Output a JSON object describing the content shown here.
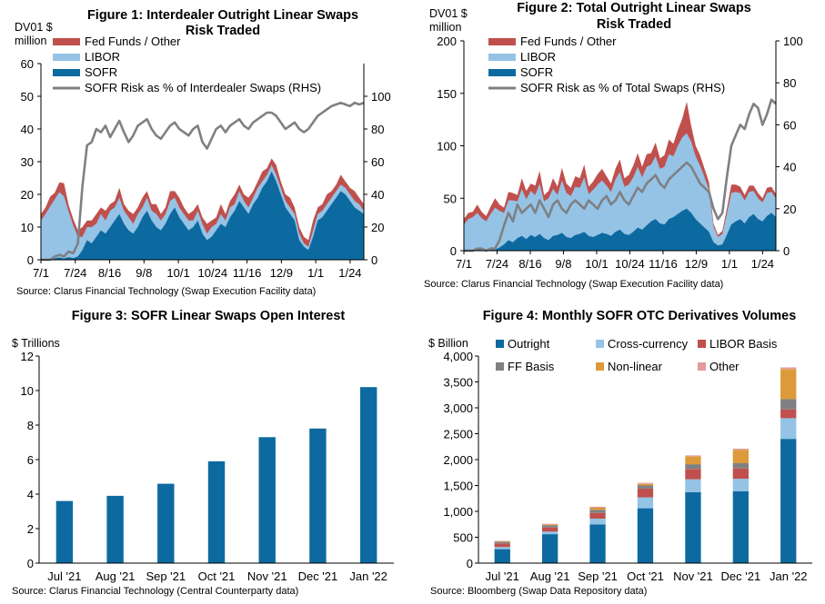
{
  "colors": {
    "sofr": "#0d6aa0",
    "libor": "#94c3e6",
    "fed": "#c0504d",
    "rhs": "#7f8083",
    "outright": "#0d6aa0",
    "crossccy": "#94c3e6",
    "liborbasis": "#c0504d",
    "ffbasis": "#7f8083",
    "nonlinear": "#dc9a3b",
    "other": "#e39a9a"
  },
  "chart_data": [
    {
      "type": "area",
      "title_line1": "Figure 1: Interdealer Outright Linear Swaps",
      "title_line2": "Risk Traded",
      "ylabel_line1": "DV01 $",
      "ylabel_line2": "million",
      "ylim": [
        0,
        60
      ],
      "yticks": [
        "0",
        "10",
        "20",
        "30",
        "40",
        "50",
        "60"
      ],
      "y2lim": [
        0,
        120
      ],
      "y2ticks": [
        "0",
        "20",
        "40",
        "60",
        "80",
        "100"
      ],
      "xticks": [
        "7/1",
        "7/24",
        "8/16",
        "9/8",
        "10/1",
        "10/24",
        "11/16",
        "12/9",
        "1/1",
        "1/24"
      ],
      "legend": [
        "Fed Funds / Other",
        "LIBOR",
        "SOFR",
        "SOFR Risk as % of Interdealer Swaps (RHS)"
      ],
      "source": "Source: Clarus Financial Technology  (Swap Execution Facility data)",
      "series": [
        {
          "name": "SOFR",
          "values": [
            0,
            0,
            0.3,
            0.5,
            0.7,
            0.4,
            0.8,
            0.5,
            1,
            3,
            6,
            5,
            7,
            9,
            8,
            10,
            12,
            14,
            11,
            9,
            8,
            10,
            13,
            15,
            12,
            10,
            9,
            11,
            14,
            16,
            13,
            11,
            9,
            10,
            12,
            8,
            6,
            7,
            9,
            11,
            10,
            13,
            15,
            18,
            16,
            14,
            17,
            19,
            22,
            24,
            27,
            24,
            20,
            16,
            14,
            12,
            6,
            4,
            3,
            7,
            12,
            13,
            15,
            17,
            19,
            21,
            20,
            18,
            16,
            15,
            14
          ]
        },
        {
          "name": "LIBOR",
          "values": [
            12,
            14,
            16,
            18,
            20,
            19,
            14,
            10,
            6,
            4,
            4,
            5,
            4,
            5,
            4,
            5,
            4,
            5,
            4,
            4,
            3,
            4,
            3,
            4,
            3,
            4,
            3,
            3,
            4,
            3,
            3,
            3,
            3,
            2,
            3,
            3,
            2,
            3,
            2,
            3,
            2,
            3,
            2,
            3,
            2,
            2,
            2,
            3,
            2,
            2,
            2,
            2,
            2,
            2,
            2,
            2,
            2,
            1,
            1,
            2,
            2,
            2,
            2,
            2,
            2,
            2,
            2,
            2,
            2,
            2,
            1
          ]
        },
        {
          "name": "Fed Funds / Other",
          "values": [
            2,
            2,
            3,
            2,
            3,
            4,
            2,
            2,
            2,
            3,
            2,
            2,
            3,
            2,
            3,
            2,
            2,
            3,
            2,
            2,
            3,
            2,
            3,
            2,
            2,
            3,
            2,
            2,
            3,
            2,
            3,
            2,
            2,
            3,
            2,
            2,
            3,
            2,
            2,
            3,
            2,
            2,
            3,
            2,
            2,
            3,
            2,
            2,
            3,
            2,
            2,
            3,
            2,
            2,
            3,
            2,
            2,
            2,
            2,
            3,
            2,
            2,
            3,
            2,
            2,
            3,
            2,
            2,
            3,
            2,
            2
          ]
        },
        {
          "name": "SOFR Risk as % of Interdealer Swaps (RHS)",
          "axis": "right",
          "values": [
            0,
            0,
            0,
            2,
            3,
            2,
            5,
            4,
            10,
            45,
            70,
            72,
            80,
            78,
            82,
            75,
            80,
            85,
            78,
            72,
            76,
            82,
            84,
            86,
            80,
            76,
            74,
            78,
            82,
            84,
            80,
            78,
            76,
            80,
            82,
            72,
            68,
            74,
            80,
            82,
            78,
            82,
            84,
            86,
            82,
            80,
            84,
            86,
            88,
            90,
            90,
            88,
            84,
            80,
            82,
            84,
            80,
            78,
            80,
            84,
            88,
            90,
            92,
            94,
            95,
            96,
            95,
            94,
            96,
            95,
            96
          ]
        }
      ]
    },
    {
      "type": "area",
      "title_line1": "Figure 2: Total Outright Linear Swaps",
      "title_line2": "Risk Traded",
      "ylabel_line1": "DV01 $",
      "ylabel_line2": "million",
      "ylim": [
        0,
        200
      ],
      "yticks": [
        "0",
        "50",
        "100",
        "150",
        "200"
      ],
      "y2lim": [
        0,
        100
      ],
      "y2ticks": [
        "0",
        "20",
        "40",
        "60",
        "80",
        "100"
      ],
      "xticks": [
        "7/1",
        "7/24",
        "8/16",
        "9/8",
        "10/1",
        "10/24",
        "11/16",
        "12/9",
        "1/1",
        "1/24"
      ],
      "legend": [
        "Fed Funds / Other",
        "LIBOR",
        "SOFR",
        "SOFR Risk as % of Total Swaps (RHS)"
      ],
      "source": "Source: Clarus Financial Technology  (Swap Execution Facility data)",
      "series": [
        {
          "name": "SOFR",
          "values": [
            0,
            0,
            0,
            1,
            1,
            0,
            1,
            1,
            3,
            6,
            10,
            8,
            12,
            14,
            11,
            15,
            13,
            16,
            12,
            10,
            14,
            15,
            17,
            13,
            12,
            15,
            16,
            18,
            14,
            13,
            15,
            17,
            16,
            14,
            18,
            20,
            16,
            15,
            18,
            22,
            20,
            24,
            28,
            30,
            26,
            25,
            30,
            32,
            35,
            38,
            40,
            36,
            30,
            26,
            22,
            18,
            8,
            5,
            6,
            15,
            25,
            28,
            30,
            26,
            32,
            35,
            30,
            28,
            33,
            36,
            32
          ]
        },
        {
          "name": "LIBOR",
          "values": [
            25,
            30,
            32,
            35,
            30,
            28,
            34,
            40,
            35,
            30,
            38,
            40,
            35,
            45,
            38,
            42,
            40,
            48,
            35,
            40,
            45,
            38,
            50,
            42,
            40,
            46,
            44,
            52,
            40,
            45,
            48,
            50,
            46,
            42,
            50,
            55,
            45,
            48,
            52,
            58,
            50,
            56,
            54,
            60,
            52,
            55,
            62,
            58,
            65,
            70,
            72,
            68,
            60,
            55,
            48,
            40,
            15,
            8,
            10,
            20,
            30,
            28,
            25,
            22,
            24,
            22,
            20,
            18,
            22,
            20,
            18
          ]
        },
        {
          "name": "Fed Funds / Other",
          "values": [
            5,
            6,
            5,
            8,
            6,
            5,
            7,
            9,
            6,
            5,
            8,
            7,
            6,
            10,
            8,
            7,
            9,
            12,
            6,
            7,
            10,
            8,
            12,
            9,
            8,
            10,
            9,
            12,
            7,
            8,
            10,
            11,
            9,
            8,
            10,
            12,
            8,
            9,
            11,
            13,
            10,
            12,
            11,
            13,
            10,
            11,
            14,
            12,
            15,
            18,
            30,
            15,
            10,
            10,
            8,
            7,
            3,
            2,
            3,
            5,
            8,
            7,
            6,
            5,
            6,
            5,
            5,
            4,
            5,
            5,
            4
          ]
        },
        {
          "name": "SOFR Risk as % of Total Swaps (RHS)",
          "axis": "right",
          "values": [
            0,
            0,
            0,
            1,
            1,
            0,
            1,
            1,
            5,
            12,
            18,
            14,
            22,
            18,
            20,
            22,
            18,
            24,
            20,
            16,
            22,
            24,
            20,
            18,
            22,
            24,
            22,
            20,
            24,
            22,
            20,
            24,
            26,
            22,
            24,
            28,
            24,
            22,
            26,
            30,
            28,
            32,
            34,
            36,
            32,
            30,
            34,
            36,
            38,
            40,
            42,
            40,
            36,
            32,
            30,
            28,
            20,
            15,
            18,
            35,
            50,
            55,
            60,
            58,
            65,
            70,
            68,
            60,
            65,
            72,
            70
          ]
        }
      ]
    },
    {
      "type": "bar",
      "title": "Figure 3: SOFR Linear Swaps Open Interest",
      "ylabel": "$ Trillions",
      "categories": [
        "Jul '21",
        "Aug '21",
        "Sep '21",
        "Oct '21",
        "Nov '21",
        "Dec '21",
        "Jan '22"
      ],
      "values": [
        3.6,
        3.9,
        4.6,
        5.9,
        7.3,
        7.8,
        10.2
      ],
      "ylim": [
        0,
        12
      ],
      "yticks": [
        "0",
        "2",
        "4",
        "6",
        "8",
        "10",
        "12"
      ],
      "source": "Source: Clarus Financial Technology  (Central Counterparty data)"
    },
    {
      "type": "bar",
      "stacked": true,
      "title": "Figure 4: Monthly SOFR OTC Derivatives Volumes",
      "ylabel": "$ Billion",
      "categories": [
        "Jul '21",
        "Aug '21",
        "Sep '21",
        "Oct '21",
        "Nov '21",
        "Dec '21",
        "Jan '22"
      ],
      "ylim": [
        0,
        4000
      ],
      "yticks": [
        "0",
        "500",
        "1,000",
        "1,500",
        "2,000",
        "2,500",
        "3,000",
        "3,500",
        "4,000"
      ],
      "legend": [
        "Outright",
        "Cross-currency",
        "LIBOR Basis",
        "FF Basis",
        "Non-linear",
        "Other"
      ],
      "source": "Source: Bloomberg  (Swap Data Repository data)",
      "series": [
        {
          "name": "Outright",
          "values": [
            270,
            560,
            750,
            1060,
            1370,
            1390,
            2400
          ]
        },
        {
          "name": "Cross-currency",
          "values": [
            40,
            50,
            110,
            210,
            250,
            240,
            400
          ]
        },
        {
          "name": "LIBOR Basis",
          "values": [
            70,
            80,
            110,
            170,
            200,
            200,
            170
          ]
        },
        {
          "name": "FF Basis",
          "values": [
            30,
            40,
            60,
            60,
            90,
            100,
            200
          ]
        },
        {
          "name": "Non-linear",
          "values": [
            10,
            20,
            40,
            30,
            150,
            260,
            580
          ]
        },
        {
          "name": "Other",
          "values": [
            10,
            10,
            20,
            20,
            20,
            20,
            30
          ]
        }
      ]
    }
  ]
}
